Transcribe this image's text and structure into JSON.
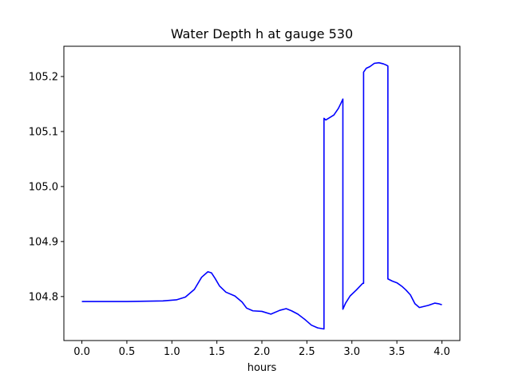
{
  "chart_data": {
    "type": "line",
    "title": "Water Depth h at gauge 530",
    "xlabel": "hours",
    "ylabel": "",
    "xlim": [
      -0.2,
      4.2
    ],
    "ylim": [
      104.72,
      105.255
    ],
    "x_ticks": [
      0.0,
      0.5,
      1.0,
      1.5,
      2.0,
      2.5,
      3.0,
      3.5,
      4.0
    ],
    "x_tick_labels": [
      "0.0",
      "0.5",
      "1.0",
      "1.5",
      "2.0",
      "2.5",
      "3.0",
      "3.5",
      "4.0"
    ],
    "y_ticks": [
      104.8,
      104.9,
      105.0,
      105.1,
      105.2
    ],
    "y_tick_labels": [
      "104.8",
      "104.9",
      "105.0",
      "105.1",
      "105.2"
    ],
    "grid": false,
    "series": [
      {
        "color": "#0000ff",
        "x": [
          0.0,
          0.5,
          0.9,
          1.05,
          1.15,
          1.25,
          1.33,
          1.4,
          1.44,
          1.48,
          1.53,
          1.6,
          1.7,
          1.78,
          1.83,
          1.9,
          2.0,
          2.1,
          2.2,
          2.27,
          2.33,
          2.4,
          2.48,
          2.55,
          2.62,
          2.69,
          2.69,
          2.71,
          2.73,
          2.75,
          2.8,
          2.85,
          2.88,
          2.9,
          2.9,
          2.93,
          2.98,
          3.05,
          3.12,
          3.13,
          3.13,
          3.16,
          3.2,
          3.25,
          3.3,
          3.35,
          3.38,
          3.4,
          3.4,
          3.45,
          3.5,
          3.56,
          3.6,
          3.65,
          3.7,
          3.75,
          3.85,
          3.92,
          3.96,
          4.0
        ],
        "y": [
          104.791,
          104.791,
          104.792,
          104.794,
          104.799,
          104.813,
          104.835,
          104.845,
          104.843,
          104.833,
          104.819,
          104.808,
          104.801,
          104.79,
          104.779,
          104.774,
          104.773,
          104.768,
          104.775,
          104.778,
          104.774,
          104.768,
          104.758,
          104.748,
          104.743,
          104.741,
          105.124,
          105.121,
          105.123,
          105.125,
          105.13,
          105.142,
          105.152,
          105.159,
          104.777,
          104.788,
          104.801,
          104.812,
          104.824,
          104.824,
          105.208,
          105.215,
          105.218,
          105.224,
          105.225,
          105.223,
          105.221,
          105.219,
          104.832,
          104.828,
          104.825,
          104.818,
          104.812,
          104.803,
          104.787,
          104.78,
          104.784,
          104.788,
          104.787,
          104.785
        ]
      }
    ]
  }
}
